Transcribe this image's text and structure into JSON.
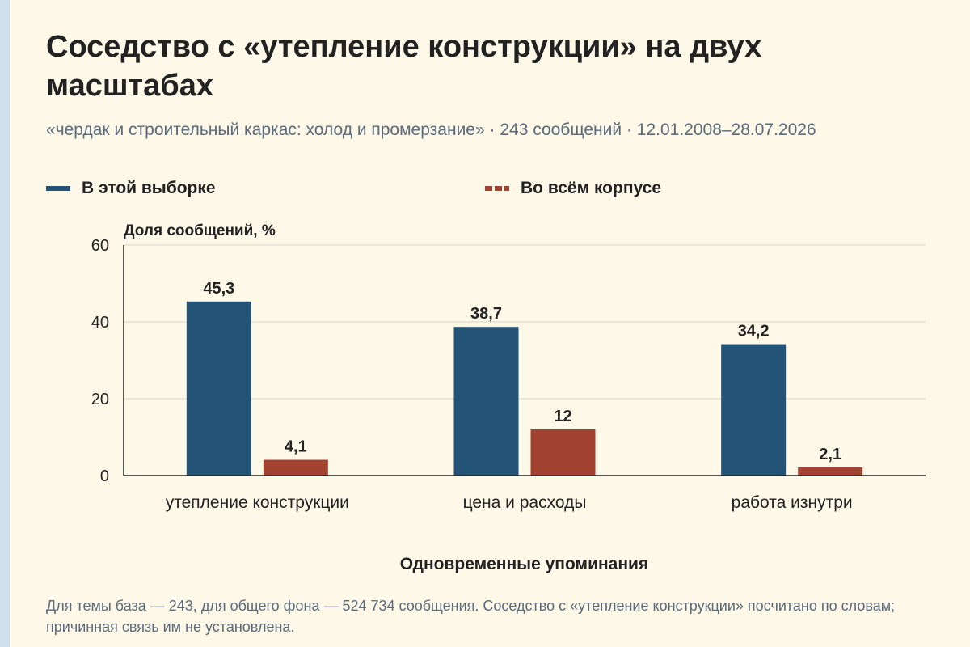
{
  "title": "Соседство с «утепление конструкции» на двух масштабах",
  "subtitle": "«чердак и строительный каркас: холод и промерзание» · 243 сообщений · 12.01.2008–28.07.2026",
  "footnote": "Для темы база — 243, для общего фона — 524 734 сообщения. Соседство с «утепление конструкции» посчитано по словам; причинная связь им не установлена.",
  "chart_data": {
    "type": "bar",
    "categories": [
      "утепление конструкции",
      "цена и расходы",
      "работа изнутри"
    ],
    "series": [
      {
        "name": "В этой выборке",
        "values": [
          45.3,
          38.7,
          34.2
        ],
        "labels": [
          "45,3",
          "38,7",
          "34,2"
        ],
        "color": "#245378"
      },
      {
        "name": "Во всём корпусе",
        "values": [
          4.1,
          12,
          2.1
        ],
        "labels": [
          "4,1",
          "12",
          "2,1"
        ],
        "color": "#a24331"
      }
    ],
    "ylabel": "Доля сообщений, %",
    "xlabel": "Одновременные упоминания",
    "ylim": [
      0,
      60
    ],
    "yticks": [
      "0",
      "20",
      "40",
      "60"
    ],
    "grid": true,
    "legend_position": "top"
  }
}
